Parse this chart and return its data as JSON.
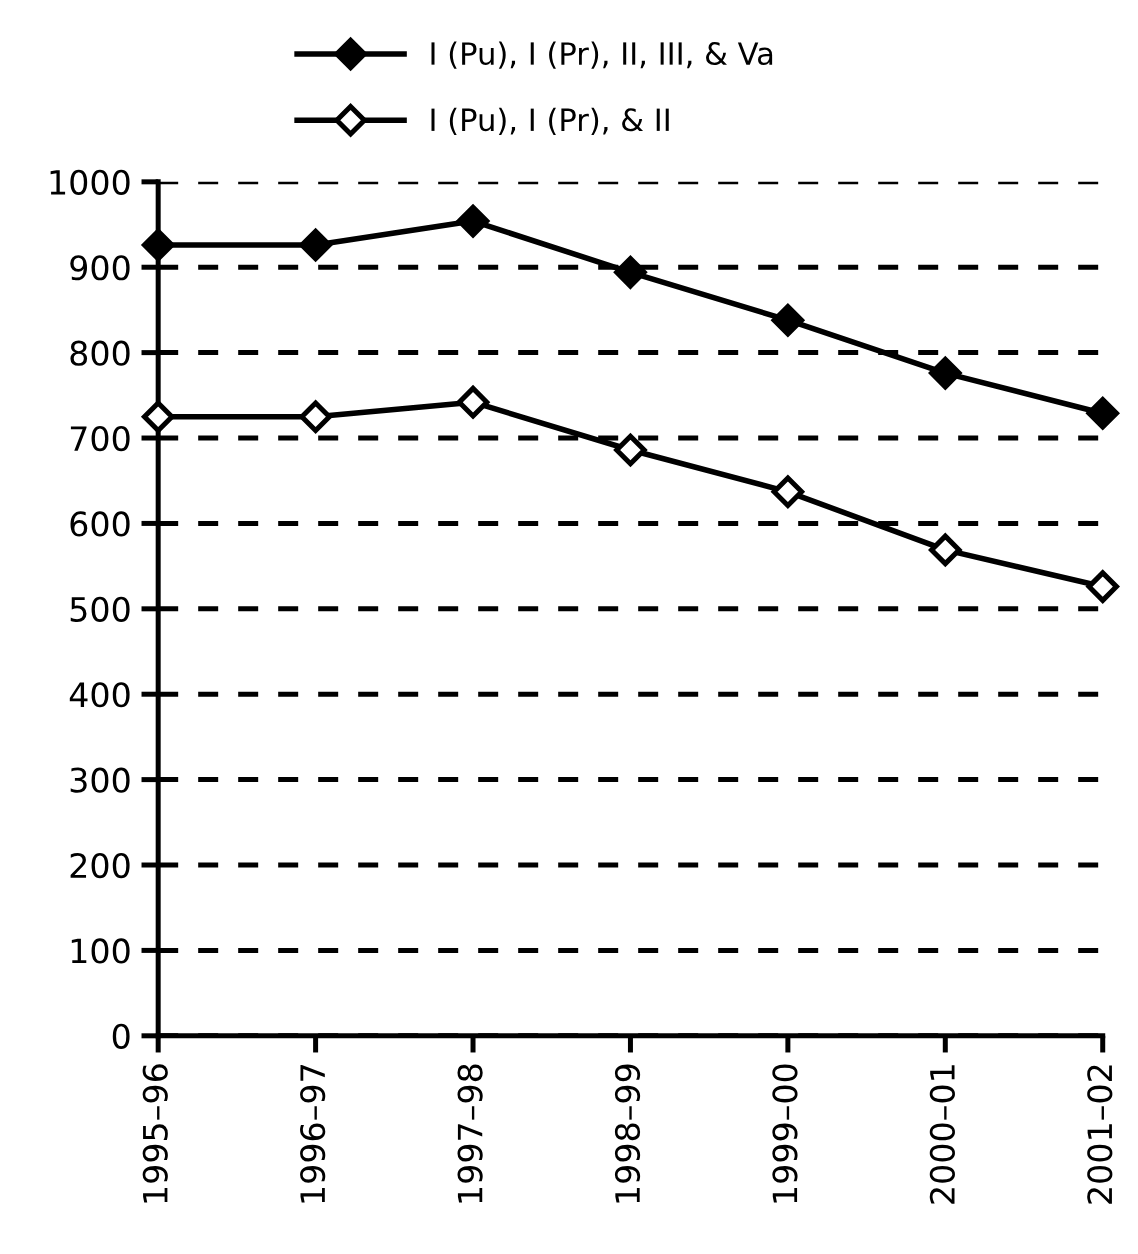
{
  "chart_data": {
    "type": "line",
    "categories": [
      "1995–96",
      "1996–97",
      "1997–98",
      "1998–99",
      "1999–00",
      "2000–01",
      "2001–02"
    ],
    "series": [
      {
        "name": "I (Pu), I (Pr), II, III, & Va",
        "color": "#000000",
        "values": [
          926,
          926,
          954,
          894,
          838,
          776,
          729
        ]
      },
      {
        "name": "I (Pu), I (Pr), & II",
        "color": "#000000",
        "values": [
          725,
          725,
          742,
          686,
          637,
          569,
          526
        ]
      }
    ],
    "ylim": [
      0,
      1000
    ],
    "yticks": [
      0,
      100,
      200,
      300,
      400,
      500,
      600,
      700,
      800,
      900,
      1000
    ],
    "grid": "y",
    "legend": "top",
    "marker": "diamond",
    "line_style": "solid"
  }
}
